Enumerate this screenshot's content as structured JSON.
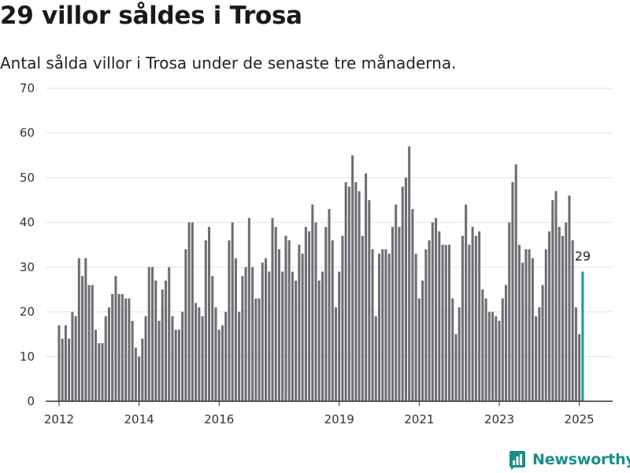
{
  "header": {
    "title": "29 villor såldes i Trosa",
    "subtitle": "Antal sålda villor i Trosa under de senaste tre månaderna."
  },
  "brand": {
    "name": "Newsworthy",
    "color": "#1a8f8a"
  },
  "colors": {
    "bar": "#6d6d73",
    "highlight": "#17a095",
    "grid": "#e2e2e2",
    "axis": "#333333"
  },
  "chart_data": {
    "type": "bar",
    "title": "29 villor såldes i Trosa",
    "subtitle": "Antal sålda villor i Trosa under de senaste tre månaderna.",
    "xlabel": "",
    "ylabel": "",
    "ylim": [
      0,
      70
    ],
    "yticks": [
      0,
      10,
      20,
      30,
      40,
      50,
      60,
      70
    ],
    "xticks": [
      "2012",
      "2014",
      "2016",
      "2019",
      "2021",
      "2023",
      "2025"
    ],
    "x_range": [
      "2011-09",
      "2025-11"
    ],
    "grid": true,
    "legend": "none",
    "x": [
      "2012-01",
      "2012-02",
      "2012-03",
      "2012-04",
      "2012-05",
      "2012-06",
      "2012-07",
      "2012-08",
      "2012-09",
      "2012-10",
      "2012-11",
      "2012-12",
      "2013-01",
      "2013-02",
      "2013-03",
      "2013-04",
      "2013-05",
      "2013-06",
      "2013-07",
      "2013-08",
      "2013-09",
      "2013-10",
      "2013-11",
      "2013-12",
      "2014-01",
      "2014-02",
      "2014-03",
      "2014-04",
      "2014-05",
      "2014-06",
      "2014-07",
      "2014-08",
      "2014-09",
      "2014-10",
      "2014-11",
      "2014-12",
      "2015-01",
      "2015-02",
      "2015-03",
      "2015-04",
      "2015-05",
      "2015-06",
      "2015-07",
      "2015-08",
      "2015-09",
      "2015-10",
      "2015-11",
      "2015-12",
      "2016-01",
      "2016-02",
      "2016-03",
      "2016-04",
      "2016-05",
      "2016-06",
      "2016-07",
      "2016-08",
      "2016-09",
      "2016-10",
      "2016-11",
      "2016-12",
      "2017-01",
      "2017-02",
      "2017-03",
      "2017-04",
      "2017-05",
      "2017-06",
      "2017-07",
      "2017-08",
      "2017-09",
      "2017-10",
      "2017-11",
      "2017-12",
      "2018-01",
      "2018-02",
      "2018-03",
      "2018-04",
      "2018-05",
      "2018-06",
      "2018-07",
      "2018-08",
      "2018-09",
      "2018-10",
      "2018-11",
      "2018-12",
      "2019-01",
      "2019-02",
      "2019-03",
      "2019-04",
      "2019-05",
      "2019-06",
      "2019-07",
      "2019-08",
      "2019-09",
      "2019-10",
      "2019-11",
      "2019-12",
      "2020-01",
      "2020-02",
      "2020-03",
      "2020-04",
      "2020-05",
      "2020-06",
      "2020-07",
      "2020-08",
      "2020-09",
      "2020-10",
      "2020-11",
      "2020-12",
      "2021-01",
      "2021-02",
      "2021-03",
      "2021-04",
      "2021-05",
      "2021-06",
      "2021-07",
      "2021-08",
      "2021-09",
      "2021-10",
      "2021-11",
      "2021-12",
      "2022-01",
      "2022-02",
      "2022-03",
      "2022-04",
      "2022-05",
      "2022-06",
      "2022-07",
      "2022-08",
      "2022-09",
      "2022-10",
      "2022-11",
      "2022-12",
      "2023-01",
      "2023-02",
      "2023-03",
      "2023-04",
      "2023-05",
      "2023-06",
      "2023-07",
      "2023-08",
      "2023-09",
      "2023-10",
      "2023-11",
      "2023-12",
      "2024-01",
      "2024-02",
      "2024-03",
      "2024-04",
      "2024-05",
      "2024-06",
      "2024-07",
      "2024-08",
      "2024-09",
      "2024-10",
      "2024-11",
      "2024-12",
      "2025-01",
      "2025-02"
    ],
    "values": [
      17,
      14,
      17,
      14,
      20,
      19,
      32,
      28,
      32,
      26,
      26,
      16,
      13,
      13,
      19,
      21,
      24,
      28,
      24,
      24,
      23,
      23,
      18,
      12,
      10,
      14,
      19,
      30,
      30,
      27,
      18,
      25,
      27,
      30,
      19,
      16,
      16,
      20,
      34,
      40,
      40,
      22,
      21,
      19,
      36,
      39,
      28,
      21,
      16,
      17,
      20,
      36,
      40,
      32,
      20,
      28,
      30,
      41,
      30,
      23,
      23,
      31,
      32,
      29,
      41,
      39,
      34,
      29,
      37,
      36,
      29,
      27,
      35,
      33,
      39,
      38,
      44,
      40,
      27,
      29,
      39,
      43,
      36,
      21,
      29,
      37,
      49,
      48,
      55,
      49,
      47,
      37,
      51,
      45,
      34,
      19,
      33,
      34,
      34,
      33,
      39,
      44,
      39,
      48,
      50,
      57,
      43,
      33,
      23,
      27,
      34,
      36,
      40,
      41,
      38,
      35,
      35,
      35,
      23,
      15,
      21,
      37,
      44,
      35,
      39,
      37,
      38,
      25,
      23,
      20,
      20,
      19,
      18,
      23,
      26,
      40,
      49,
      53,
      35,
      31,
      34,
      34,
      32,
      19,
      21,
      26,
      34,
      38,
      45,
      47,
      39,
      37,
      40,
      46,
      36,
      21,
      15,
      29
    ],
    "highlight_index": 157,
    "annotations": [
      {
        "x": "2025-02",
        "label": "29"
      }
    ]
  }
}
